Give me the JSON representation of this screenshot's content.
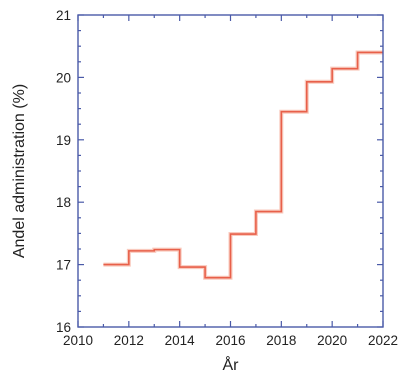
{
  "chart_data": {
    "type": "line",
    "step": true,
    "xlabel": "År",
    "ylabel": "Andel administration (%)",
    "xlim": [
      2010,
      2022
    ],
    "ylim": [
      16,
      21
    ],
    "xticks": [
      2010,
      2012,
      2014,
      2016,
      2018,
      2020,
      2022
    ],
    "yticks": [
      16,
      17,
      18,
      19,
      20,
      21
    ],
    "grid": false,
    "legend": "none",
    "colors": {
      "line": "#e8604a",
      "line_glow": "#f6b3a3",
      "axis": "#4a5aa8"
    },
    "series": [
      {
        "x": [
          2011,
          2012,
          2013,
          2014,
          2015,
          2016,
          2017,
          2018,
          2019,
          2020,
          2021,
          2022
        ],
        "values": [
          17.0,
          17.22,
          17.24,
          16.96,
          16.79,
          17.49,
          17.85,
          19.45,
          19.93,
          20.14,
          20.4,
          20.4
        ]
      }
    ]
  }
}
